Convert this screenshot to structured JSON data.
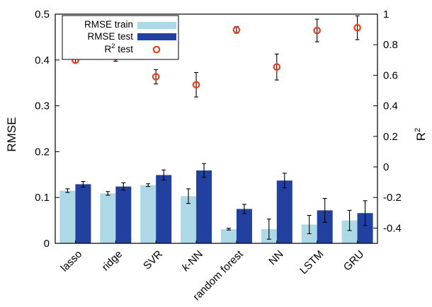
{
  "chart_data": {
    "type": "bar",
    "categories": [
      "lasso",
      "ridge",
      "SVR",
      "k-NN",
      "random forest",
      "NN",
      "LSTM",
      "GRU"
    ],
    "category_labels": [
      {
        "prefix": "",
        "italic": "",
        "suffix": "lasso"
      },
      {
        "prefix": "",
        "italic": "",
        "suffix": "ridge"
      },
      {
        "prefix": "",
        "italic": "",
        "suffix": "SVR"
      },
      {
        "prefix": "",
        "italic": "k",
        "suffix": "-NN"
      },
      {
        "prefix": "",
        "italic": "",
        "suffix": "random forest"
      },
      {
        "prefix": "",
        "italic": "",
        "suffix": "NN"
      },
      {
        "prefix": "",
        "italic": "",
        "suffix": "LSTM"
      },
      {
        "prefix": "",
        "italic": "",
        "suffix": "GRU"
      }
    ],
    "ylabel": "RMSE",
    "ylabel_right_base": "R",
    "ylabel_right_sup": "2",
    "ylim": [
      0,
      0.5
    ],
    "yticks": [
      "0",
      "0.1",
      "0.2",
      "0.3",
      "0.4",
      "0.5"
    ],
    "y2lim": [
      -0.5,
      1.0
    ],
    "y2ticks": [
      "-0.4",
      "-0.2",
      "0",
      "0.2",
      "0.4",
      "0.6",
      "0.8",
      "1"
    ],
    "grid": false,
    "legend_position": "top-left",
    "series": [
      {
        "name": "RMSE train",
        "kind": "bar",
        "axis": "left",
        "color": "#add8e6",
        "values": [
          0.115,
          0.109,
          0.127,
          0.103,
          0.031,
          0.031,
          0.041,
          0.05
        ],
        "errors": [
          0.004,
          0.004,
          0.003,
          0.016,
          0.002,
          0.022,
          0.02,
          0.022
        ]
      },
      {
        "name": "RMSE test",
        "kind": "bar",
        "axis": "left",
        "color": "#2140a0",
        "values": [
          0.129,
          0.124,
          0.149,
          0.159,
          0.075,
          0.137,
          0.072,
          0.066
        ],
        "errors": [
          0.006,
          0.008,
          0.011,
          0.015,
          0.01,
          0.016,
          0.026,
          0.027
        ]
      },
      {
        "name": "R2 test",
        "legend_base": "R",
        "legend_sup": "2",
        "legend_suffix": " test",
        "kind": "point",
        "axis": "right",
        "color": "#e8401f",
        "values": [
          0.698,
          0.722,
          0.59,
          0.538,
          0.897,
          0.654,
          0.893,
          0.911
        ],
        "errors": [
          0.017,
          0.03,
          0.047,
          0.08,
          0.022,
          0.085,
          0.074,
          0.078
        ]
      }
    ]
  }
}
